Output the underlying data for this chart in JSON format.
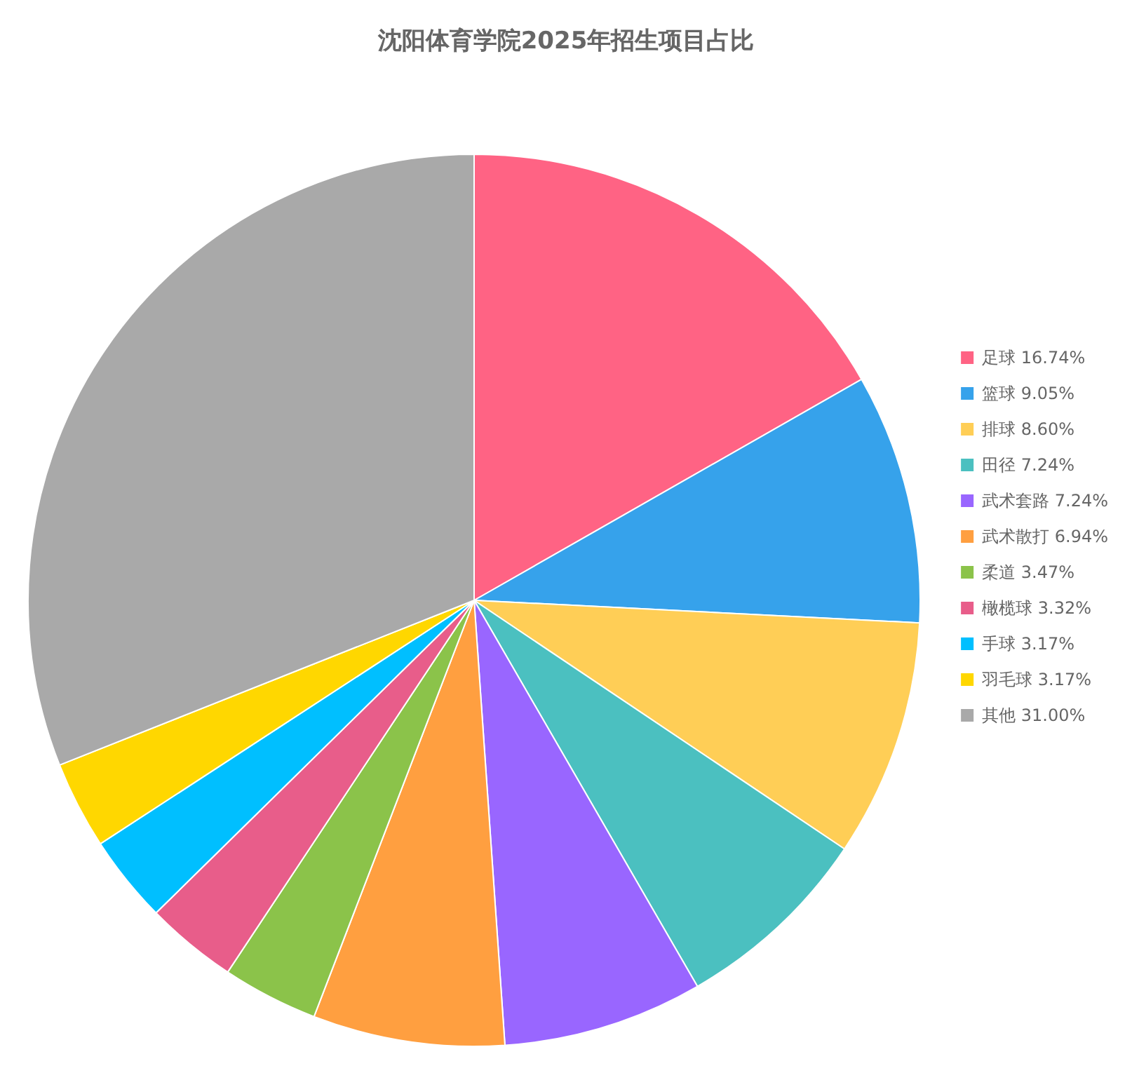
{
  "chart_data": {
    "type": "pie",
    "title": "沈阳体育学院2025年招生项目占比",
    "categories": [
      "足球",
      "篮球",
      "排球",
      "田径",
      "武术套路",
      "武术散打",
      "柔道",
      "橄榄球",
      "手球",
      "羽毛球",
      "其他"
    ],
    "values": [
      16.74,
      9.05,
      8.6,
      7.24,
      7.24,
      6.94,
      3.47,
      3.32,
      3.17,
      3.17,
      31.0
    ],
    "value_labels": [
      "16.74%",
      "9.05%",
      "8.60%",
      "7.24%",
      "7.24%",
      "6.94%",
      "3.47%",
      "3.32%",
      "3.17%",
      "3.17%",
      "31.00%"
    ],
    "colors": [
      "#ff6384",
      "#36a2eb",
      "#ffce56",
      "#4bc0c0",
      "#9966ff",
      "#ff9f40",
      "#8bc34a",
      "#e85d8a",
      "#00bfff",
      "#ffd700",
      "#a9a9a9"
    ],
    "legend": "right"
  }
}
